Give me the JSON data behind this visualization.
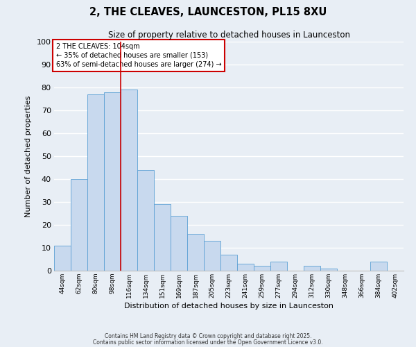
{
  "title": "2, THE CLEAVES, LAUNCESTON, PL15 8XU",
  "subtitle": "Size of property relative to detached houses in Launceston",
  "xlabel": "Distribution of detached houses by size in Launceston",
  "ylabel": "Number of detached properties",
  "bar_labels": [
    "44sqm",
    "62sqm",
    "80sqm",
    "98sqm",
    "116sqm",
    "134sqm",
    "151sqm",
    "169sqm",
    "187sqm",
    "205sqm",
    "223sqm",
    "241sqm",
    "259sqm",
    "277sqm",
    "294sqm",
    "312sqm",
    "330sqm",
    "348sqm",
    "366sqm",
    "384sqm",
    "402sqm"
  ],
  "bar_values": [
    11,
    40,
    77,
    78,
    79,
    44,
    29,
    24,
    16,
    13,
    7,
    3,
    2,
    4,
    0,
    2,
    1,
    0,
    0,
    4,
    0
  ],
  "bar_color": "#c8d9ee",
  "bar_edge_color": "#5a9fd4",
  "ylim": [
    0,
    100
  ],
  "yticks": [
    0,
    10,
    20,
    30,
    40,
    50,
    60,
    70,
    80,
    90,
    100
  ],
  "red_line_x": 3.5,
  "annotation_title": "2 THE CLEAVES: 104sqm",
  "annotation_line1": "← 35% of detached houses are smaller (153)",
  "annotation_line2": "63% of semi-detached houses are larger (274) →",
  "annotation_box_color": "#ffffff",
  "annotation_box_edge": "#cc0000",
  "red_line_color": "#cc0000",
  "background_color": "#e8eef5",
  "grid_color": "#ffffff",
  "footer1": "Contains HM Land Registry data © Crown copyright and database right 2025.",
  "footer2": "Contains public sector information licensed under the Open Government Licence v3.0."
}
